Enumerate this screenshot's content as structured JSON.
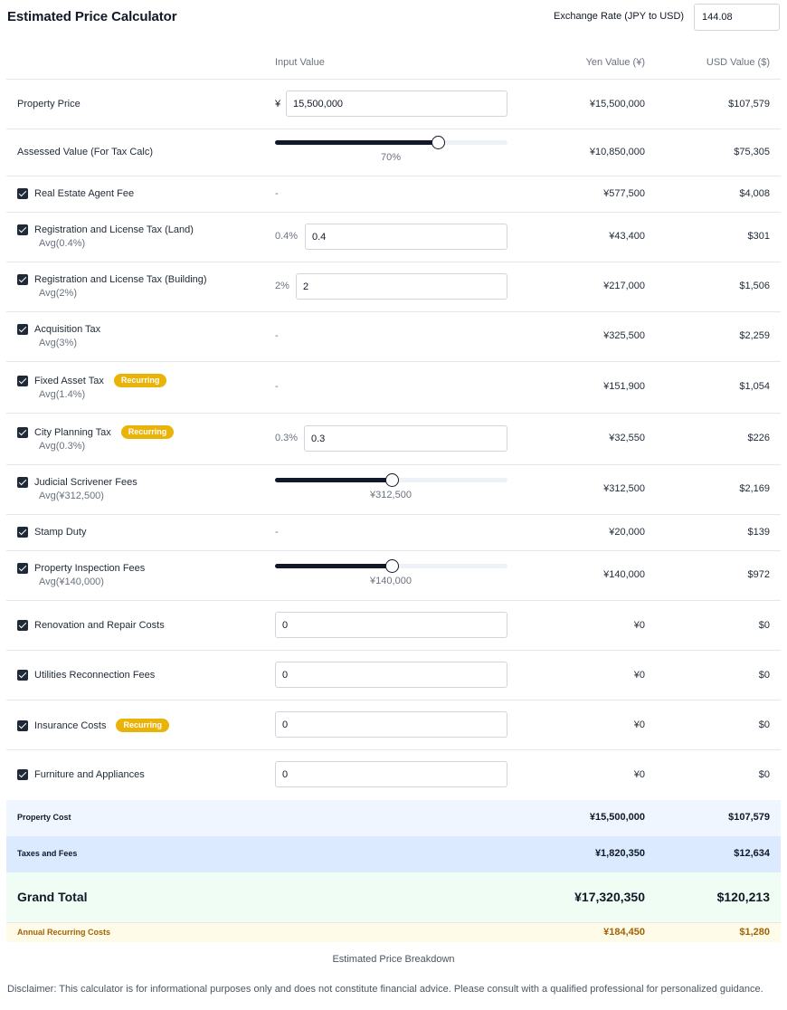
{
  "title": "Estimated Price Calculator",
  "exchange": {
    "label": "Exchange Rate (JPY to USD)",
    "value": "144.08"
  },
  "columns": {
    "input": "Input Value",
    "yen": "Yen Value (¥)",
    "usd": "USD Value ($)"
  },
  "rows": {
    "property_price": {
      "label": "Property Price",
      "prefix": "¥",
      "input": "15,500,000",
      "yen": "¥15,500,000",
      "usd": "$107,579"
    },
    "assessed": {
      "label": "Assessed Value (For Tax Calc)",
      "slider_value": 70,
      "slider_label": "70%",
      "yen": "¥10,850,000",
      "usd": "$75,305"
    },
    "agent_fee": {
      "label": "Real Estate Agent Fee",
      "checked": true,
      "input": "-",
      "yen": "¥577,500",
      "usd": "$4,008"
    },
    "reg_land": {
      "label": "Registration and License Tax (Land)",
      "checked": true,
      "avg": "Avg(0.4%)",
      "prefix": "0.4%",
      "input": "0.4",
      "yen": "¥43,400",
      "usd": "$301"
    },
    "reg_building": {
      "label": "Registration and License Tax (Building)",
      "checked": true,
      "avg": "Avg(2%)",
      "prefix": "2%",
      "input": "2",
      "yen": "¥217,000",
      "usd": "$1,506"
    },
    "acq_tax": {
      "label": "Acquisition Tax",
      "checked": true,
      "avg": "Avg(3%)",
      "input": "-",
      "yen": "¥325,500",
      "usd": "$2,259"
    },
    "fixed_asset": {
      "label": "Fixed Asset Tax",
      "checked": true,
      "badge": "Recurring",
      "avg": "Avg(1.4%)",
      "input": "-",
      "yen": "¥151,900",
      "usd": "$1,054"
    },
    "city_planning": {
      "label": "City Planning Tax",
      "checked": true,
      "badge": "Recurring",
      "avg": "Avg(0.3%)",
      "prefix": "0.3%",
      "input": "0.3",
      "yen": "¥32,550",
      "usd": "$226"
    },
    "scrivener": {
      "label": "Judicial Scrivener Fees",
      "checked": true,
      "avg": "Avg(¥312,500)",
      "slider_value": 50,
      "slider_label": "¥312,500",
      "yen": "¥312,500",
      "usd": "$2,169"
    },
    "stamp": {
      "label": "Stamp Duty",
      "checked": true,
      "input": "-",
      "yen": "¥20,000",
      "usd": "$139"
    },
    "inspection": {
      "label": "Property Inspection Fees",
      "checked": true,
      "avg": "Avg(¥140,000)",
      "slider_value": 50,
      "slider_label": "¥140,000",
      "yen": "¥140,000",
      "usd": "$972"
    },
    "renovation": {
      "label": "Renovation and Repair Costs",
      "checked": true,
      "input": "0",
      "yen": "¥0",
      "usd": "$0"
    },
    "utilities": {
      "label": "Utilities Reconnection Fees",
      "checked": true,
      "input": "0",
      "yen": "¥0",
      "usd": "$0"
    },
    "insurance": {
      "label": "Insurance Costs",
      "checked": true,
      "badge": "Recurring",
      "input": "0",
      "yen": "¥0",
      "usd": "$0"
    },
    "furniture": {
      "label": "Furniture and Appliances",
      "checked": true,
      "input": "0",
      "yen": "¥0",
      "usd": "$0"
    }
  },
  "summary": {
    "property_cost": {
      "label": "Property Cost",
      "yen": "¥15,500,000",
      "usd": "$107,579",
      "bg": "#eff6ff"
    },
    "taxes_fees": {
      "label": "Taxes and Fees",
      "yen": "¥1,820,350",
      "usd": "$12,634",
      "bg": "#dbeafe"
    },
    "grand_total": {
      "label": "Grand Total",
      "yen": "¥17,320,350",
      "usd": "$120,213",
      "bg": "#f0fdf4"
    },
    "annual_recurring": {
      "label": "Annual Recurring Costs",
      "yen": "¥184,450",
      "usd": "$1,280",
      "bg": "#fefce8",
      "color": "#a16207"
    }
  },
  "caption": "Estimated Price Breakdown",
  "disclaimer": "Disclaimer: This calculator is for informational purposes only and does not constitute financial advice. Please consult with a qualified professional for personalized guidance.",
  "colors": {
    "accent": "#111827",
    "badge": "#eab308",
    "border": "#e5e7eb"
  }
}
